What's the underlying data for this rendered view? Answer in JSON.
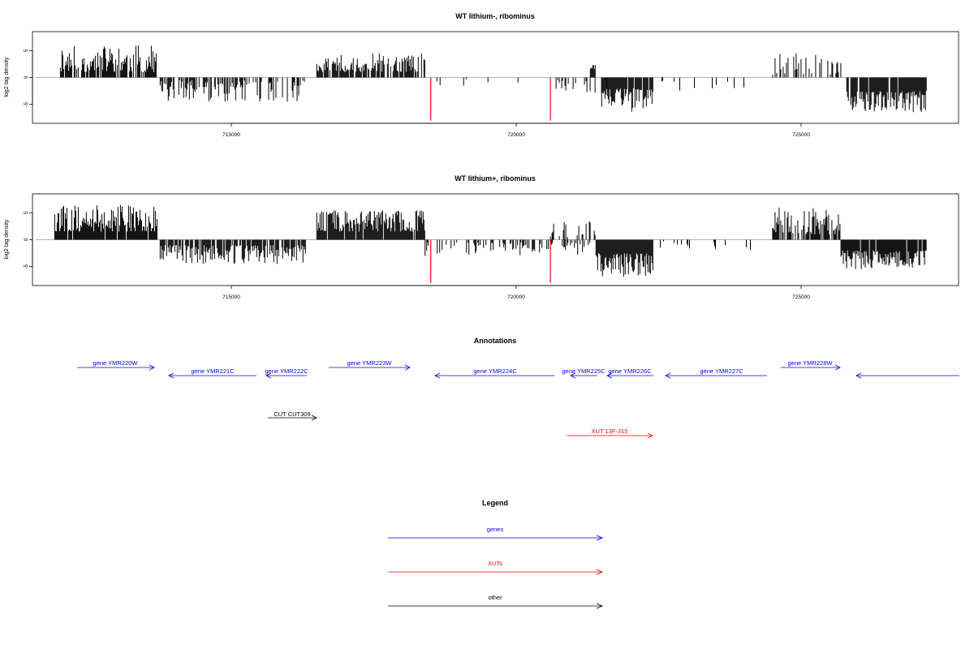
{
  "chart_data": [
    {
      "type": "bar",
      "title": "WT lithium-, ribominus",
      "ylabel": "log2 tag density",
      "xlim": [
        711000,
        728000
      ],
      "ylim": [
        -8.5,
        8.5
      ],
      "x_ticks": [
        715000,
        720000,
        725000
      ],
      "y_ticks": [
        -5,
        0,
        5
      ],
      "grid": false,
      "baseline": 0,
      "segments": [
        {
          "start": 712000,
          "end": 713700,
          "sign": 1,
          "min": 1.0,
          "max": 6.0,
          "density": 0.75,
          "seed": 11
        },
        {
          "start": 713750,
          "end": 715200,
          "sign": -1,
          "min": 0.5,
          "max": 4.5,
          "density": 0.6,
          "seed": 12
        },
        {
          "start": 715200,
          "end": 716300,
          "sign": -1,
          "min": 0.5,
          "max": 4.5,
          "density": 0.35,
          "seed": 13
        },
        {
          "start": 716500,
          "end": 718400,
          "sign": 1,
          "min": 1.0,
          "max": 4.5,
          "density": 0.75,
          "seed": 14
        },
        {
          "start": 718450,
          "end": 720700,
          "sign": -1,
          "min": 0.3,
          "max": 3.0,
          "density": 0.06,
          "seed": 15
        },
        {
          "start": 720700,
          "end": 721600,
          "sign": -1,
          "min": 0.5,
          "max": 3.0,
          "density": 0.3,
          "seed": 16
        },
        {
          "start": 721500,
          "end": 722400,
          "sign": -1,
          "min": 2.0,
          "max": 6.5,
          "density": 0.95,
          "seed": 17
        },
        {
          "start": 722400,
          "end": 724000,
          "sign": -1,
          "min": 0.5,
          "max": 2.5,
          "density": 0.07,
          "seed": 18
        },
        {
          "start": 724500,
          "end": 725700,
          "sign": 1,
          "min": 0.5,
          "max": 4.5,
          "density": 0.35,
          "seed": 19
        },
        {
          "start": 725800,
          "end": 727200,
          "sign": -1,
          "min": 2.5,
          "max": 6.5,
          "density": 0.95,
          "seed": 20
        },
        {
          "start": 721300,
          "end": 721400,
          "sign": 1,
          "min": 1.5,
          "max": 2.5,
          "density": 0.5,
          "seed": 21
        }
      ],
      "highlights": [
        {
          "x": 718500,
          "value": -8.0,
          "color": "#ff0000"
        },
        {
          "x": 720600,
          "value": -8.0,
          "color": "#ff0000"
        }
      ]
    },
    {
      "type": "bar",
      "title": "WT lithium+, ribominus",
      "ylabel": "log2 tag density",
      "xlim": [
        711000,
        728000
      ],
      "ylim": [
        -8.5,
        8.5
      ],
      "x_ticks": [
        715000,
        720000,
        725000
      ],
      "y_ticks": [
        -5,
        0,
        5
      ],
      "grid": false,
      "baseline": 0,
      "segments": [
        {
          "start": 711900,
          "end": 713700,
          "sign": 1,
          "min": 1.5,
          "max": 6.5,
          "density": 0.95,
          "seed": 31
        },
        {
          "start": 713750,
          "end": 716300,
          "sign": -1,
          "min": 1.0,
          "max": 4.5,
          "density": 0.75,
          "seed": 32
        },
        {
          "start": 716500,
          "end": 718400,
          "sign": 1,
          "min": 1.5,
          "max": 5.5,
          "density": 0.95,
          "seed": 33
        },
        {
          "start": 718400,
          "end": 721300,
          "sign": -1,
          "min": 0.5,
          "max": 3.0,
          "density": 0.35,
          "seed": 34
        },
        {
          "start": 720600,
          "end": 721400,
          "sign": 1,
          "min": 0.5,
          "max": 3.5,
          "density": 0.3,
          "seed": 35
        },
        {
          "start": 721400,
          "end": 722400,
          "sign": -1,
          "min": 2.5,
          "max": 7.0,
          "density": 1.0,
          "seed": 36
        },
        {
          "start": 722400,
          "end": 724200,
          "sign": -1,
          "min": 0.3,
          "max": 2.0,
          "density": 0.12,
          "seed": 37
        },
        {
          "start": 724500,
          "end": 725700,
          "sign": 1,
          "min": 1.0,
          "max": 6.0,
          "density": 0.75,
          "seed": 38
        },
        {
          "start": 725700,
          "end": 727200,
          "sign": -1,
          "min": 2.0,
          "max": 5.5,
          "density": 0.95,
          "seed": 39
        }
      ],
      "highlights": [
        {
          "x": 718500,
          "value": -8.0,
          "color": "#ff0000"
        },
        {
          "x": 720600,
          "value": -8.0,
          "color": "#ff0000"
        }
      ]
    }
  ],
  "annotations": {
    "title": "Annotations",
    "genes_color": "#0000ff",
    "xuts_color": "#ff0000",
    "other_color": "#000000",
    "features": [
      {
        "label": "gene YMR220W",
        "kind": "gene",
        "strand": "+",
        "row": 0
      },
      {
        "label": "gene YMR221C",
        "kind": "gene",
        "strand": "-",
        "row": 1
      },
      {
        "label": "gene YMR222C",
        "kind": "gene",
        "strand": "-",
        "row": 1
      },
      {
        "label": "gene YMR223W",
        "kind": "gene",
        "strand": "+",
        "row": 0
      },
      {
        "label": "gene YMR224C",
        "kind": "gene",
        "strand": "-",
        "row": 1
      },
      {
        "label": "gene YMR225C",
        "kind": "gene",
        "strand": "-",
        "row": 1
      },
      {
        "label": "gene YMR226C",
        "kind": "gene",
        "strand": "-",
        "row": 1
      },
      {
        "label": "gene YMR227C",
        "kind": "gene",
        "strand": "-",
        "row": 1
      },
      {
        "label": "gene YMR228W",
        "kind": "gene",
        "strand": "+",
        "row": 0
      },
      {
        "label": "",
        "kind": "gene",
        "strand": "-",
        "row": 1
      },
      {
        "label": "CUT CUT309",
        "kind": "other",
        "strand": "+",
        "row": 2
      },
      {
        "label": "XUT 13F-315",
        "kind": "xut",
        "strand": "+",
        "row": 3
      }
    ]
  },
  "legend": {
    "title": "Legend",
    "items": [
      {
        "label": "genes",
        "color": "#0000ff"
      },
      {
        "label": "XUTs",
        "color": "#ff0000"
      },
      {
        "label": "other",
        "color": "#000000"
      }
    ]
  }
}
